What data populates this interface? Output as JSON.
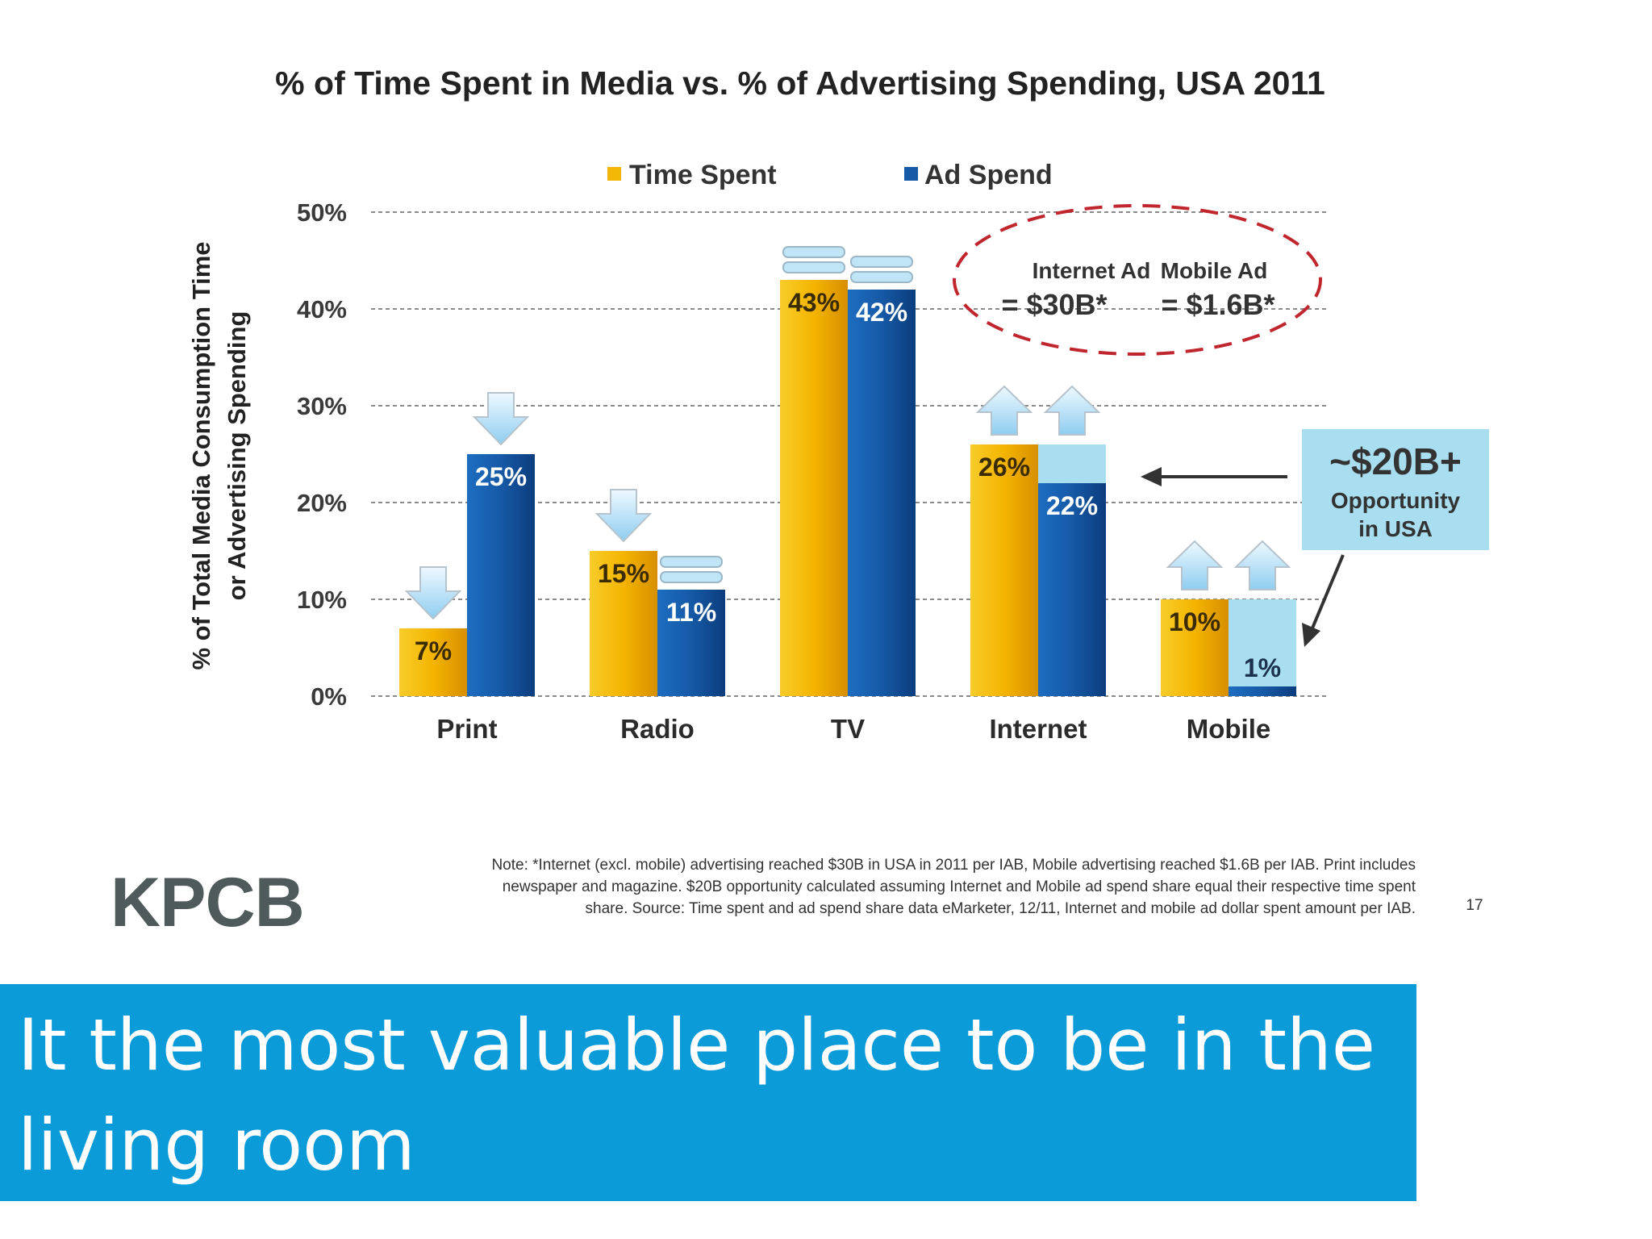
{
  "chart_data": {
    "type": "bar",
    "title": "% of Time Spent in Media vs. % of Advertising Spending, USA 2011",
    "ylabel_line1": "% of Total Media Consumption Time",
    "ylabel_line2": "or Advertising Spending",
    "ylim": [
      0,
      50
    ],
    "yticks": [
      "0%",
      "10%",
      "20%",
      "30%",
      "40%",
      "50%"
    ],
    "categories": [
      "Print",
      "Radio",
      "TV",
      "Internet",
      "Mobile"
    ],
    "series": [
      {
        "name": "Time Spent",
        "values": [
          7,
          15,
          43,
          26,
          10
        ],
        "labels": [
          "7%",
          "15%",
          "43%",
          "26%",
          "10%"
        ],
        "color": "#f2b705"
      },
      {
        "name": "Ad Spend",
        "values": [
          25,
          11,
          42,
          22,
          1
        ],
        "labels": [
          "25%",
          "11%",
          "42%",
          "22%",
          "1%"
        ],
        "color": "#1659a6"
      }
    ],
    "opportunity_targets": [
      {
        "category": "Internet",
        "value": 26
      },
      {
        "category": "Mobile",
        "value": 10
      }
    ],
    "markers": [
      {
        "category": "Print",
        "series": "Time Spent",
        "kind": "down-arrow"
      },
      {
        "category": "Print",
        "series": "Ad Spend",
        "kind": "down-arrow"
      },
      {
        "category": "Radio",
        "series": "Time Spent",
        "kind": "down-arrow"
      },
      {
        "category": "Radio",
        "series": "Ad Spend",
        "kind": "flat"
      },
      {
        "category": "TV",
        "series": "Time Spent",
        "kind": "flat"
      },
      {
        "category": "TV",
        "series": "Ad Spend",
        "kind": "flat"
      },
      {
        "category": "Internet",
        "series": "Time Spent",
        "kind": "up-arrow"
      },
      {
        "category": "Internet",
        "series": "Ad Spend",
        "kind": "up-arrow"
      },
      {
        "category": "Mobile",
        "series": "Time Spent",
        "kind": "up-arrow"
      },
      {
        "category": "Mobile",
        "series": "Ad Spend",
        "kind": "up-arrow"
      }
    ],
    "callout_internet_label": "Internet Ad",
    "callout_internet_value": "= $30B*",
    "callout_mobile_label": "Mobile Ad",
    "callout_mobile_value": "= $1.6B*",
    "opportunity_amount": "~$20B+",
    "opportunity_line2": "Opportunity",
    "opportunity_line3": "in USA"
  },
  "note_lines": [
    "Note: *Internet (excl. mobile) advertising reached $30B in USA in 2011 per IAB, Mobile advertising reached $1.6B per IAB. Print includes",
    "newspaper and magazine. $20B opportunity calculated assuming Internet and Mobile ad spend share equal their respective time spent",
    "share. Source: Time spent and ad spend share data eMarketer, 12/11, Internet and mobile ad dollar spent amount per IAB."
  ],
  "logo": "KPCB",
  "page_number": "17",
  "caption": "It the most valuable place to be in the living room",
  "colors": {
    "time_spent": "#f2b705",
    "ad_spend": "#1659a6",
    "opportunity_fill": "#a8def0",
    "callout_dash": "#c0262d",
    "caption_bg": "#0b9bd8"
  }
}
